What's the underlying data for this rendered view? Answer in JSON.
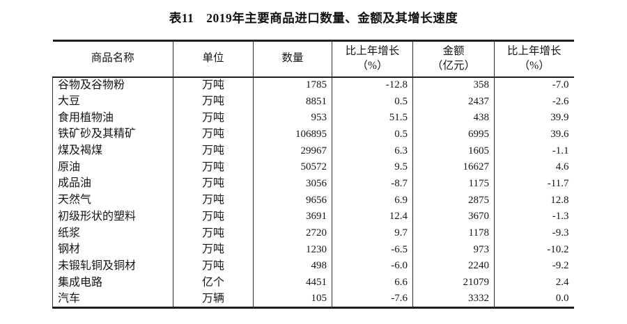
{
  "title": "表11　2019年主要商品进口数量、金额及其增长速度",
  "table": {
    "headers": [
      {
        "line1": "商品名称",
        "line2": ""
      },
      {
        "line1": "单位",
        "line2": ""
      },
      {
        "line1": "数量",
        "line2": ""
      },
      {
        "line1": "比上年增长",
        "line2": "（%）"
      },
      {
        "line1": "金额",
        "line2": "（亿元）"
      },
      {
        "line1": "比上年增长",
        "line2": "（%）"
      }
    ],
    "rows": [
      {
        "name": "谷物及谷物粉",
        "unit": "万吨",
        "quantity": "1785",
        "quantity_growth": "-12.8",
        "value": "358",
        "value_growth": "-7.0"
      },
      {
        "name": "大豆",
        "unit": "万吨",
        "quantity": "8851",
        "quantity_growth": "0.5",
        "value": "2437",
        "value_growth": "-2.6"
      },
      {
        "name": "食用植物油",
        "unit": "万吨",
        "quantity": "953",
        "quantity_growth": "51.5",
        "value": "438",
        "value_growth": "39.9"
      },
      {
        "name": "铁矿砂及其精矿",
        "unit": "万吨",
        "quantity": "106895",
        "quantity_growth": "0.5",
        "value": "6995",
        "value_growth": "39.6"
      },
      {
        "name": "煤及褐煤",
        "unit": "万吨",
        "quantity": "29967",
        "quantity_growth": "6.3",
        "value": "1605",
        "value_growth": "-1.1"
      },
      {
        "name": "原油",
        "unit": "万吨",
        "quantity": "50572",
        "quantity_growth": "9.5",
        "value": "16627",
        "value_growth": "4.6"
      },
      {
        "name": "成品油",
        "unit": "万吨",
        "quantity": "3056",
        "quantity_growth": "-8.7",
        "value": "1175",
        "value_growth": "-11.7"
      },
      {
        "name": "天然气",
        "unit": "万吨",
        "quantity": "9656",
        "quantity_growth": "6.9",
        "value": "2875",
        "value_growth": "12.8"
      },
      {
        "name": "初级形状的塑料",
        "unit": "万吨",
        "quantity": "3691",
        "quantity_growth": "12.4",
        "value": "3670",
        "value_growth": "-1.3"
      },
      {
        "name": "纸浆",
        "unit": "万吨",
        "quantity": "2720",
        "quantity_growth": "9.7",
        "value": "1178",
        "value_growth": "-9.3"
      },
      {
        "name": "钢材",
        "unit": "万吨",
        "quantity": "1230",
        "quantity_growth": "-6.5",
        "value": "973",
        "value_growth": "-10.2"
      },
      {
        "name": "未锻轧铜及铜材",
        "unit": "万吨",
        "quantity": "498",
        "quantity_growth": "-6.0",
        "value": "2240",
        "value_growth": "-9.2"
      },
      {
        "name": "集成电路",
        "unit": "亿个",
        "quantity": "4451",
        "quantity_growth": "6.6",
        "value": "21079",
        "value_growth": "2.4"
      },
      {
        "name": "汽车",
        "unit": "万辆",
        "quantity": "105",
        "quantity_growth": "-7.6",
        "value": "3332",
        "value_growth": "0.0"
      }
    ]
  },
  "colors": {
    "text": "#151515",
    "border": "#2a2a2a",
    "background": "#ffffff"
  }
}
